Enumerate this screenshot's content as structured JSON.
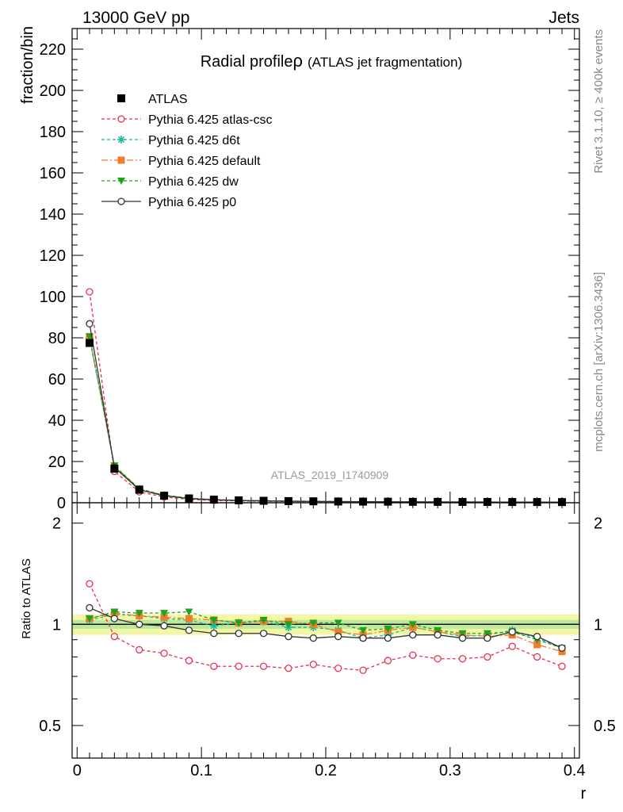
{
  "header": {
    "left": "13000 GeV pp",
    "right": "Jets"
  },
  "side_labels": {
    "rivet": "Rivet 3.1.10, ≥ 400k events",
    "mcplots": "mcplots.cern.ch [arXiv:1306.3436]"
  },
  "watermark": "ATLAS_2019_I1740909",
  "chart_data": {
    "type": "line",
    "title": "Radial profile",
    "title_symbol": "ρ",
    "subtitle": "(ATLAS jet fragmentation)",
    "xlabel": "r",
    "ylabel": "fraction/bin",
    "ratio_ylabel": "Ratio to ATLAS",
    "xlim": [
      -0.004,
      0.404
    ],
    "ylim": [
      0,
      230
    ],
    "ratio_ylim": [
      0.4,
      2.3
    ],
    "ratio_scale": "log",
    "x_ticks": [
      "0",
      "0.1",
      "0.2",
      "0.3",
      "0.4"
    ],
    "x_tick_values": [
      0,
      0.1,
      0.2,
      0.3,
      0.4
    ],
    "y_ticks": [
      "0",
      "20",
      "40",
      "60",
      "80",
      "100",
      "120",
      "140",
      "160",
      "180",
      "200",
      "220"
    ],
    "y_tick_values": [
      0,
      20,
      40,
      60,
      80,
      100,
      120,
      140,
      160,
      180,
      200,
      220
    ],
    "ratio_ticks": [
      "0.5",
      "1",
      "2"
    ],
    "ratio_tick_values": [
      0.5,
      1,
      2
    ],
    "legend_position": "top-left",
    "x": [
      0.01,
      0.03,
      0.05,
      0.07,
      0.09,
      0.11,
      0.13,
      0.15,
      0.17,
      0.19,
      0.21,
      0.23,
      0.25,
      0.27,
      0.29,
      0.31,
      0.33,
      0.35,
      0.37,
      0.39
    ],
    "data": {
      "name": "ATLAS",
      "color": "#000000",
      "values": [
        77.5,
        16.5,
        6.3,
        3.4,
        2.1,
        1.5,
        1.15,
        0.95,
        0.8,
        0.7,
        0.6,
        0.55,
        0.5,
        0.45,
        0.42,
        0.4,
        0.38,
        0.36,
        0.34,
        0.32
      ],
      "band_inner": 0.03,
      "band_outer": 0.07
    },
    "series": [
      {
        "name": "Pythia 6.425 atlas-csc",
        "color": "#e8304f",
        "marker": "open-circle",
        "dash": "4,3",
        "ratio": [
          1.32,
          0.92,
          0.84,
          0.82,
          0.78,
          0.75,
          0.75,
          0.75,
          0.74,
          0.76,
          0.74,
          0.73,
          0.78,
          0.81,
          0.79,
          0.79,
          0.8,
          0.86,
          0.8,
          0.75
        ]
      },
      {
        "name": "Pythia 6.425 d6t",
        "color": "#16b89e",
        "marker": "star",
        "dash": "4,3",
        "ratio": [
          1.03,
          1.07,
          1.06,
          1.04,
          1.03,
          0.99,
          1.01,
          1.02,
          0.98,
          0.98,
          0.96,
          0.91,
          0.93,
          0.98,
          0.95,
          0.92,
          0.93,
          0.96,
          0.91,
          0.85
        ]
      },
      {
        "name": "Pythia 6.425 default",
        "color": "#f27d29",
        "marker": "square",
        "dash": "8,3,2,3",
        "ratio": [
          1.04,
          1.08,
          1.06,
          1.05,
          1.04,
          1.03,
          1.01,
          1.02,
          1.02,
          1.0,
          0.95,
          0.93,
          0.96,
          0.98,
          0.95,
          0.93,
          0.92,
          0.93,
          0.87,
          0.83
        ]
      },
      {
        "name": "Pythia 6.425 dw",
        "color": "#1da31d",
        "marker": "triangle-down",
        "dash": "4,3",
        "ratio": [
          1.04,
          1.09,
          1.08,
          1.08,
          1.09,
          1.03,
          1.01,
          1.03,
          1.0,
          1.01,
          1.01,
          0.96,
          0.97,
          1.0,
          0.96,
          0.94,
          0.94,
          0.95,
          0.9,
          0.85
        ]
      },
      {
        "name": "Pythia 6.425 p0",
        "color": "#333333",
        "marker": "open-circle",
        "dash": "",
        "ratio": [
          1.12,
          1.04,
          1.0,
          0.99,
          0.96,
          0.94,
          0.94,
          0.94,
          0.92,
          0.91,
          0.92,
          0.91,
          0.91,
          0.93,
          0.93,
          0.91,
          0.91,
          0.95,
          0.92,
          0.85
        ]
      }
    ]
  }
}
